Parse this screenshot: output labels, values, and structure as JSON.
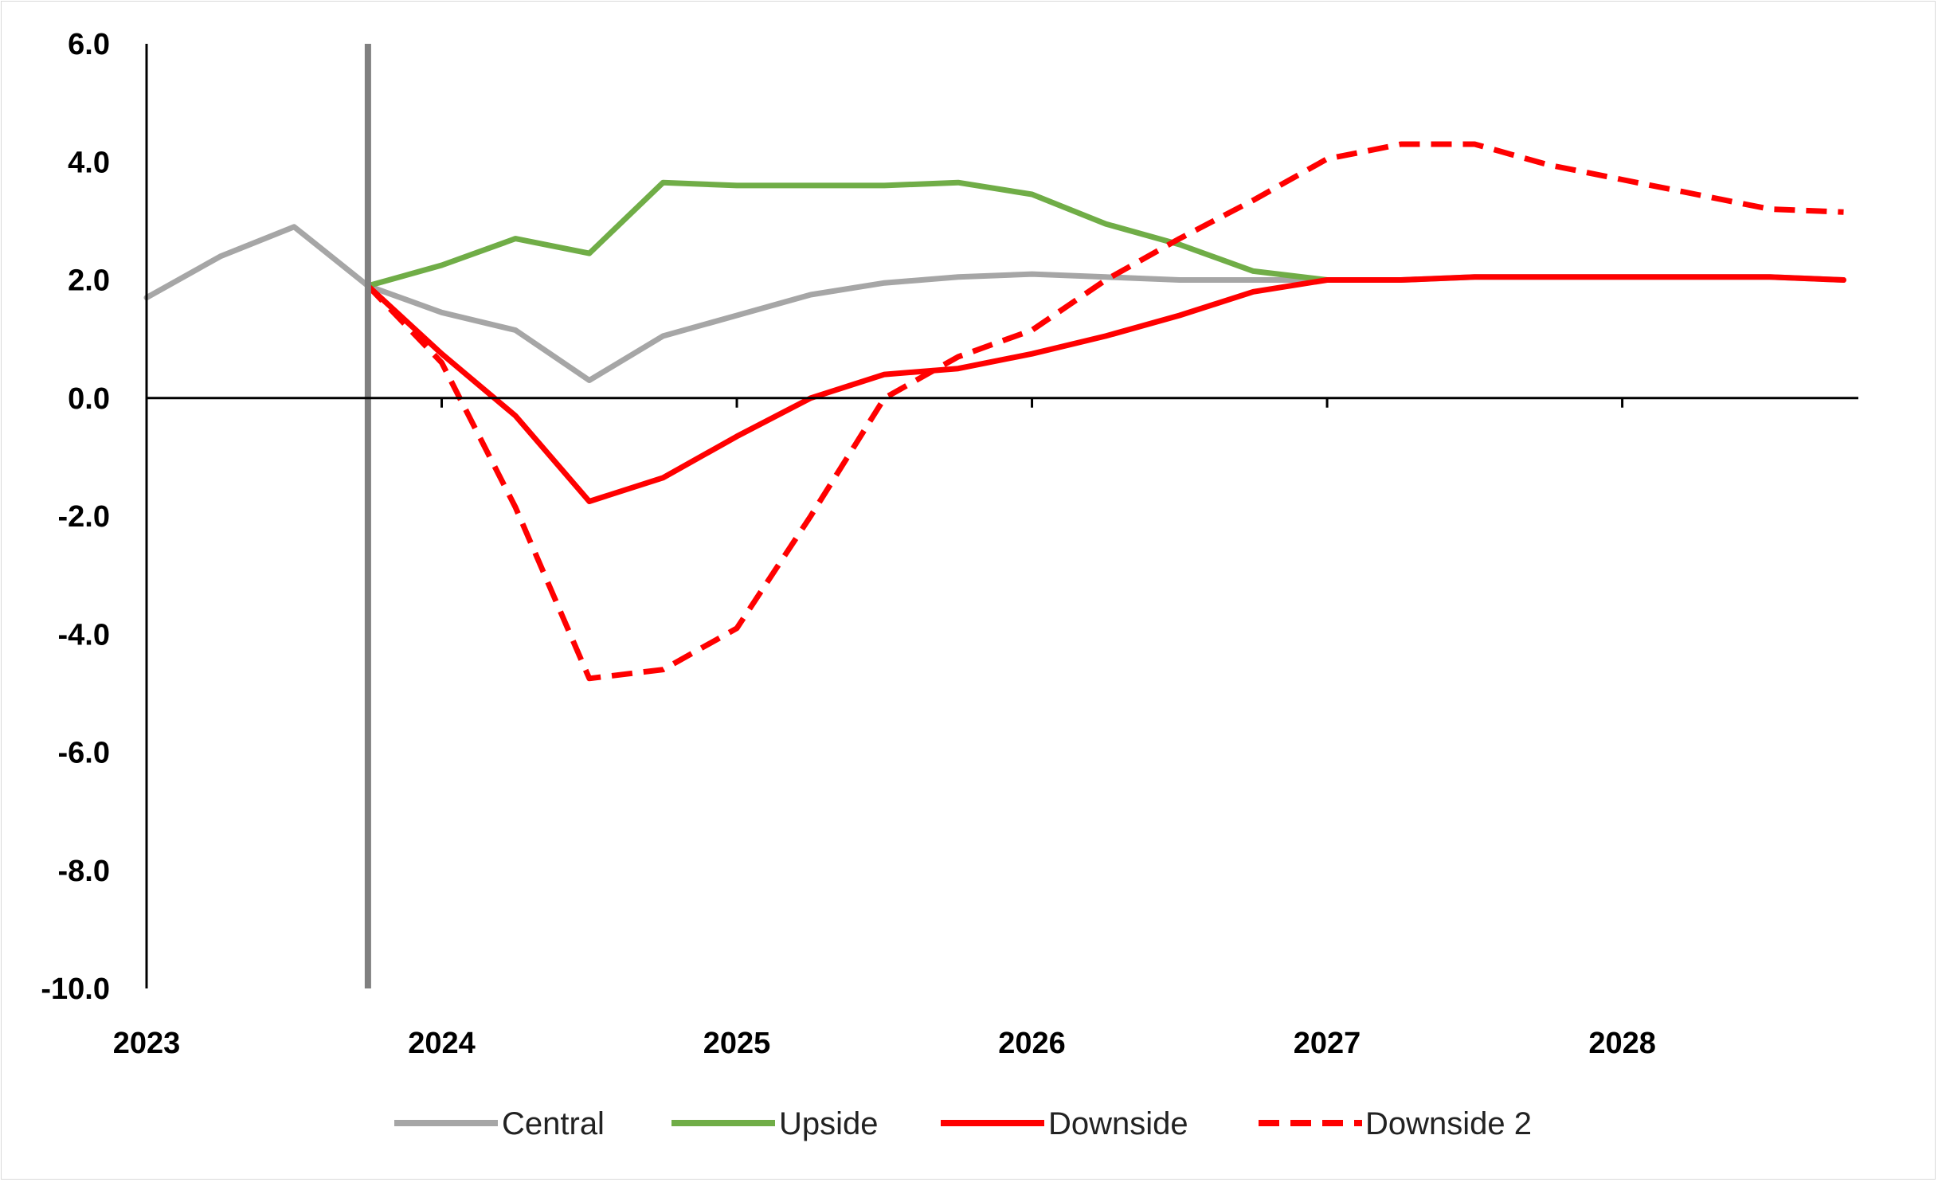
{
  "chart_data": {
    "type": "line",
    "title": "",
    "xlabel": "",
    "ylabel": "",
    "xlim": [
      2023,
      2028.8
    ],
    "ylim": [
      -10.0,
      6.0
    ],
    "y_ticks": [
      "6.0",
      "4.0",
      "2.0",
      "0.0",
      "-2.0",
      "-4.0",
      "-6.0",
      "-8.0",
      "-10.0"
    ],
    "x_ticks": [
      "2023",
      "2024",
      "2025",
      "2026",
      "2027",
      "2028"
    ],
    "vertical_marker_x": 2023.75,
    "grid": false,
    "legend_position": "bottom",
    "series": [
      {
        "name": "Central",
        "color": "#a6a6a6",
        "dash": "solid",
        "x": [
          2023.0,
          2023.25,
          2023.5,
          2023.75,
          2024.0,
          2024.25,
          2024.5,
          2024.75,
          2025.0,
          2025.25,
          2025.5,
          2025.75,
          2026.0,
          2026.25,
          2026.5,
          2026.75,
          2027.0,
          2027.25,
          2027.5,
          2027.75,
          2028.0,
          2028.25,
          2028.5,
          2028.75
        ],
        "values": [
          1.7,
          2.4,
          2.9,
          1.9,
          1.45,
          1.15,
          0.3,
          1.05,
          1.4,
          1.75,
          1.95,
          2.05,
          2.1,
          2.05,
          2.0,
          2.0,
          2.0,
          2.0,
          2.05,
          2.05,
          2.05,
          2.05,
          2.05,
          2.0
        ]
      },
      {
        "name": "Upside",
        "color": "#70ad47",
        "dash": "solid",
        "x": [
          2023.75,
          2024.0,
          2024.25,
          2024.5,
          2024.75,
          2025.0,
          2025.25,
          2025.5,
          2025.75,
          2026.0,
          2026.25,
          2026.5,
          2026.75,
          2027.0
        ],
        "values": [
          1.9,
          2.25,
          2.7,
          2.45,
          3.65,
          3.6,
          3.6,
          3.6,
          3.65,
          3.45,
          2.95,
          2.6,
          2.15,
          2.0
        ]
      },
      {
        "name": "Downside",
        "color": "#ff0000",
        "dash": "solid",
        "x": [
          2023.75,
          2024.0,
          2024.25,
          2024.5,
          2024.75,
          2025.0,
          2025.25,
          2025.5,
          2025.75,
          2026.0,
          2026.25,
          2026.5,
          2026.75,
          2027.0,
          2027.25,
          2027.5,
          2027.75,
          2028.0,
          2028.25,
          2028.5,
          2028.75
        ],
        "values": [
          1.9,
          0.75,
          -0.3,
          -1.75,
          -1.35,
          -0.65,
          0.0,
          0.4,
          0.5,
          0.75,
          1.05,
          1.4,
          1.8,
          2.0,
          2.0,
          2.05,
          2.05,
          2.05,
          2.05,
          2.05,
          2.0
        ]
      },
      {
        "name": "Downside 2",
        "color": "#ff0000",
        "dash": "dashed",
        "x": [
          2023.75,
          2024.0,
          2024.25,
          2024.5,
          2024.75,
          2025.0,
          2025.25,
          2025.5,
          2025.75,
          2026.0,
          2026.25,
          2026.5,
          2026.75,
          2027.0,
          2027.25,
          2027.5,
          2027.75,
          2028.0,
          2028.25,
          2028.5,
          2028.75
        ],
        "values": [
          1.9,
          0.6,
          -1.85,
          -4.75,
          -4.6,
          -3.9,
          -2.0,
          0.0,
          0.7,
          1.15,
          2.0,
          2.7,
          3.35,
          4.05,
          4.3,
          4.3,
          3.95,
          3.7,
          3.45,
          3.2,
          3.15
        ]
      }
    ]
  }
}
